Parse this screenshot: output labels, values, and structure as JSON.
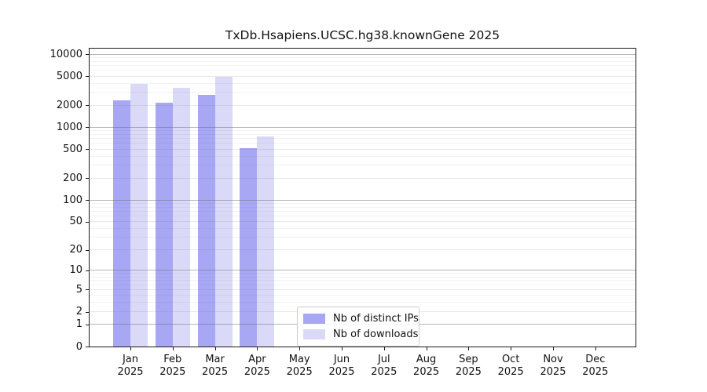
{
  "title": "TxDb.Hsapiens.UCSC.hg38.knownGene 2025",
  "chart_data": {
    "type": "bar",
    "title": "TxDb.Hsapiens.UCSC.hg38.knownGene 2025",
    "categories": [
      "Jan 2025",
      "Feb 2025",
      "Mar 2025",
      "Apr 2025",
      "May 2025",
      "Jun 2025",
      "Jul 2025",
      "Aug 2025",
      "Sep 2025",
      "Oct 2025",
      "Nov 2025",
      "Dec 2025"
    ],
    "month_labels": [
      "Jan",
      "Feb",
      "Mar",
      "Apr",
      "May",
      "Jun",
      "Jul",
      "Aug",
      "Sep",
      "Oct",
      "Nov",
      "Dec"
    ],
    "year_label": "2025",
    "series": [
      {
        "name": "Nb of distinct IPs",
        "color": "#a7a7f4",
        "values": [
          2330,
          2170,
          2780,
          515,
          null,
          null,
          null,
          null,
          null,
          null,
          null,
          null
        ]
      },
      {
        "name": "Nb of downloads",
        "color": "#dadaf8",
        "values": [
          3910,
          3460,
          4890,
          750,
          null,
          null,
          null,
          null,
          null,
          null,
          null,
          null
        ]
      }
    ],
    "y_scale": "log1p",
    "y_ticks": [
      0,
      1,
      2,
      5,
      10,
      20,
      50,
      100,
      200,
      500,
      1000,
      2000,
      5000,
      10000
    ],
    "ylim": [
      0,
      12500
    ],
    "xlabel": "",
    "ylabel": "",
    "grid": true,
    "legend_position": "lower center",
    "axis_color": "#1a1a1a",
    "gridline_decade_color": "rgba(110,110,110,0.50)",
    "gridline_major_color": "rgba(110,110,110,0.16)",
    "gridline_minor_color": "rgba(110,110,110,0.09)"
  }
}
